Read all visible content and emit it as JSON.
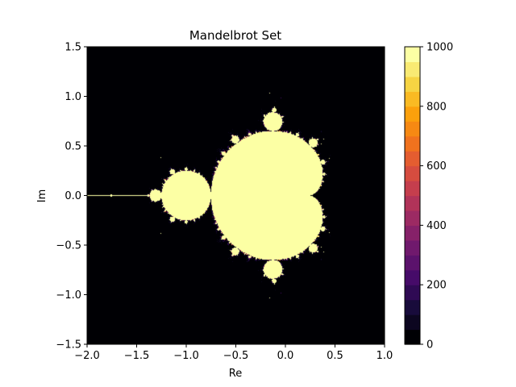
{
  "chart_data": {
    "type": "heatmap",
    "title": "Mandelbrot Set",
    "xlabel": "Re",
    "ylabel": "Im",
    "xlim": [
      -2.0,
      1.0
    ],
    "ylim": [
      -1.5,
      1.5
    ],
    "xticks": [
      -2.0,
      -1.5,
      -1.0,
      -0.5,
      0.0,
      0.5,
      1.0
    ],
    "xtick_labels": [
      "−2.0",
      "−1.5",
      "−1.0",
      "−0.5",
      "0.0",
      "0.5",
      "1.0"
    ],
    "yticks": [
      -1.5,
      -1.0,
      -0.5,
      0.0,
      0.5,
      1.0,
      1.5
    ],
    "ytick_labels": [
      "−1.5",
      "−1.0",
      "−0.5",
      "0.0",
      "0.5",
      "1.0",
      "1.5"
    ],
    "colorbar": {
      "range": [
        0,
        1000
      ],
      "ticks": [
        0,
        200,
        400,
        600,
        800,
        1000
      ],
      "tick_labels": [
        "0",
        "200",
        "400",
        "600",
        "800",
        "1000"
      ],
      "colormap": "inferno",
      "levels": 20
    },
    "max_iterations": 1000,
    "grid": false,
    "note_shapes": "main set region (iterations = 1000) shown as pale yellow on black background",
    "colors": {
      "set_color": "#fcffa4",
      "background": "#000004"
    }
  }
}
